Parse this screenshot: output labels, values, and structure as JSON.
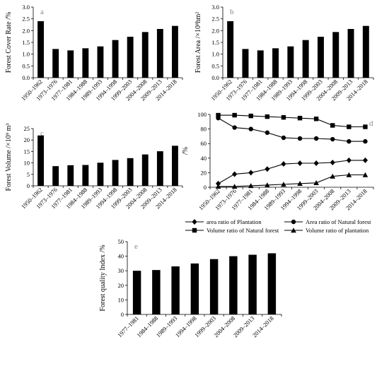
{
  "chart_data": [
    {
      "id": "a",
      "type": "bar",
      "panel_label": "a",
      "ylabel": "Forest Cover Rate /%",
      "ylim": [
        0,
        3.0
      ],
      "yticks": [
        "0.0",
        "0.5",
        "1.0",
        "1.5",
        "2.0",
        "2.5",
        "3.0"
      ],
      "categories": [
        "1950–1962",
        "1973–1976",
        "1977–1981",
        "1984–1988",
        "1989–1993",
        "1994–1998",
        "1999–2003",
        "2004–2008",
        "2009–2013",
        "2014–2018"
      ],
      "values": [
        2.4,
        1.22,
        1.16,
        1.25,
        1.33,
        1.6,
        1.74,
        1.94,
        2.07,
        2.2
      ],
      "grid": false
    },
    {
      "id": "b",
      "type": "bar",
      "panel_label": "b",
      "ylabel": "Forest Area /×10⁸hm²",
      "ylim": [
        0,
        3.0
      ],
      "yticks": [
        "0.0",
        "0.5",
        "1.0",
        "1.5",
        "2.0",
        "2.5",
        "3.0"
      ],
      "categories": [
        "1950–1962",
        "1973–1976",
        "1977–1981",
        "1984–1988",
        "1989–1993",
        "1994–1998",
        "1999–2003",
        "2004–2008",
        "2009–2013",
        "2014–2018"
      ],
      "values": [
        2.4,
        1.22,
        1.16,
        1.25,
        1.33,
        1.6,
        1.74,
        1.94,
        2.07,
        2.2
      ],
      "grid": false
    },
    {
      "id": "c",
      "type": "bar",
      "panel_label": "c",
      "ylabel": "Forest Volume /×10⁹ m³",
      "ylim": [
        0,
        25
      ],
      "yticks": [
        "0",
        "5",
        "10",
        "15",
        "20",
        "25"
      ],
      "categories": [
        "1950–1962",
        "1973–1976",
        "1977–1981",
        "1984–1988",
        "1989–1993",
        "1994–1998",
        "1999–2003",
        "2004–2008",
        "2009–2013",
        "2014–2018"
      ],
      "values": [
        22,
        8.6,
        9.0,
        9.1,
        10.1,
        11.3,
        12.1,
        13.7,
        15.1,
        17.5
      ],
      "grid": false
    },
    {
      "id": "d",
      "type": "line",
      "panel_label": "d",
      "ylabel": "/%",
      "ylim": [
        0,
        100
      ],
      "yticks": [
        "0",
        "20",
        "40",
        "60",
        "80",
        "100"
      ],
      "categories": [
        "1950–1962",
        "1973–1976",
        "1977–1981",
        "1984–1988",
        "1989–1993",
        "1994–1998",
        "1999–2003",
        "2004–2008",
        "2009–2013",
        "2014–2018"
      ],
      "legend_position": "bottom",
      "series": [
        {
          "name": "area ratio of Plantation",
          "marker": "diamond",
          "values": [
            5,
            18,
            20,
            25,
            32,
            33,
            33,
            34,
            37,
            37
          ]
        },
        {
          "name": "Area ratio of Natural forest",
          "marker": "circle",
          "values": [
            95,
            82,
            80,
            75,
            68,
            67,
            67,
            66,
            63,
            63
          ]
        },
        {
          "name": "Volume ratio of Natural forest",
          "marker": "square",
          "values": [
            99,
            99,
            98,
            97,
            96,
            95,
            94,
            85,
            83,
            83
          ]
        },
        {
          "name": "Volume ratio of plantation",
          "marker": "triangle",
          "values": [
            1,
            1,
            2,
            3,
            4,
            5,
            6,
            15,
            17,
            17
          ]
        }
      ],
      "grid": false
    },
    {
      "id": "e",
      "type": "bar",
      "panel_label": "e",
      "ylabel": "Forest quality Index /%",
      "ylim": [
        0,
        50
      ],
      "yticks": [
        "0",
        "10",
        "20",
        "30",
        "40",
        "50"
      ],
      "categories": [
        "1977–1981",
        "1984–1988",
        "1989–1993",
        "1994–1998",
        "1999–2003",
        "2004–2008",
        "2009–2013",
        "2014–2018"
      ],
      "values": [
        30,
        30.5,
        33,
        35,
        38,
        40,
        41,
        42
      ],
      "grid": false
    }
  ]
}
